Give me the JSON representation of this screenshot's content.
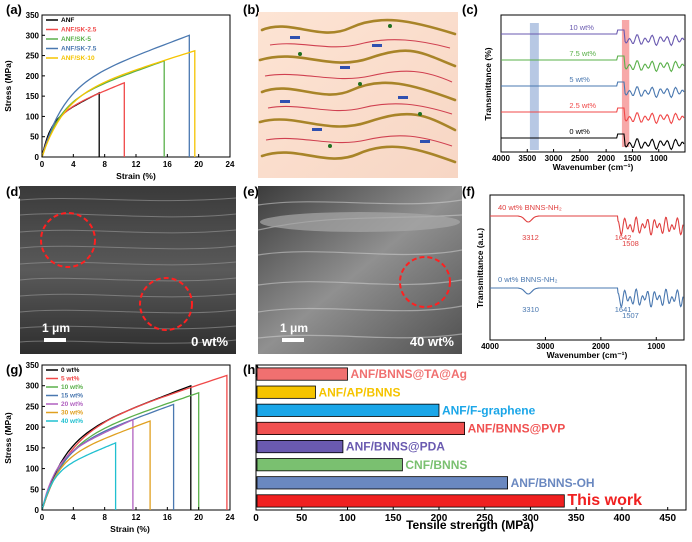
{
  "panels": {
    "a": {
      "label": "(a)"
    },
    "b": {
      "label": "(b)"
    },
    "c": {
      "label": "(c)"
    },
    "d": {
      "label": "(d)",
      "scale": "1 μm",
      "caption": "0 wt%"
    },
    "e": {
      "label": "(e)",
      "scale": "1 μm",
      "caption": "40 wt%"
    },
    "f": {
      "label": "(f)"
    },
    "g": {
      "label": "(g)"
    },
    "h": {
      "label": "(h)"
    }
  },
  "colors": {
    "black": "#000000",
    "red": "#f04848",
    "green": "#5ab04a",
    "blue": "#4a78b0",
    "yellow": "#f5c400",
    "purple": "#b060c0",
    "orange": "#e0a020",
    "cyan": "#20c0d0",
    "sky": "#1aa6e8",
    "darkred": "#e02020",
    "steel": "#6a88c0",
    "indigo": "#6a5ab0",
    "mint": "#7ac070",
    "salmon": "#f07070"
  },
  "chart_data": [
    {
      "panel": "a",
      "type": "line",
      "xlabel": "Strain (%)",
      "ylabel": "Stress (MPa)",
      "xlim": [
        0,
        24
      ],
      "ylim": [
        0,
        350
      ],
      "xticks": [
        0,
        4,
        8,
        12,
        16,
        20,
        24
      ],
      "yticks": [
        0,
        50,
        100,
        150,
        200,
        250,
        300,
        350
      ],
      "series": [
        {
          "name": "ANF",
          "color": "#000000",
          "break": 7.3,
          "peak": 158
        },
        {
          "name": "ANF/SK-2.5",
          "color": "#f04848",
          "break": 10.5,
          "peak": 183
        },
        {
          "name": "ANF/SK-5",
          "color": "#5ab04a",
          "break": 15.6,
          "peak": 237
        },
        {
          "name": "ANF/SK-7.5",
          "color": "#4a78b0",
          "break": 18.8,
          "peak": 300
        },
        {
          "name": "ANF/SK-10",
          "color": "#f5c400",
          "break": 19.5,
          "peak": 262
        }
      ]
    },
    {
      "panel": "c",
      "type": "line",
      "xlabel": "Wavenumber (cm⁻¹)",
      "ylabel": "Transmittance (%)",
      "xlim": [
        4000,
        500
      ],
      "xticks": [
        4000,
        3500,
        3000,
        2500,
        2000,
        1500,
        1000
      ],
      "series": [
        {
          "name": "0 wt%",
          "color": "#000000"
        },
        {
          "name": "2.5 wt%",
          "color": "#f04848"
        },
        {
          "name": "5 wt%",
          "color": "#4a78b0"
        },
        {
          "name": "7.5 wt%",
          "color": "#5ab04a"
        },
        {
          "name": "10 wt%",
          "color": "#6a5ab0"
        }
      ]
    },
    {
      "panel": "f",
      "type": "line",
      "xlabel": "Wavenumber (cm⁻¹)",
      "ylabel": "Transmittance (a.u.)",
      "xlim": [
        4000,
        500
      ],
      "xticks": [
        4000,
        3000,
        2000,
        1000
      ],
      "series": [
        {
          "name": "40 wt% BNNS-NH₂",
          "color": "#e04040",
          "peaks": [
            "3312",
            "1642",
            "1508"
          ]
        },
        {
          "name": "0 wt% BNNS-NH₂",
          "color": "#4a78b0",
          "peaks": [
            "3310",
            "1641",
            "1507"
          ]
        }
      ]
    },
    {
      "panel": "g",
      "type": "line",
      "xlabel": "Strain (%)",
      "ylabel": "Stress (MPa)",
      "xlim": [
        0,
        24
      ],
      "ylim": [
        0,
        350
      ],
      "xticks": [
        0,
        4,
        8,
        12,
        16,
        20,
        24
      ],
      "yticks": [
        0,
        50,
        100,
        150,
        200,
        250,
        300,
        350
      ],
      "series": [
        {
          "name": "0 wt%",
          "color": "#000000",
          "break": 19.0,
          "peak": 300
        },
        {
          "name": "5 wt%",
          "color": "#f04848",
          "break": 23.6,
          "peak": 325
        },
        {
          "name": "10 wt%",
          "color": "#5ab04a",
          "break": 20.0,
          "peak": 283
        },
        {
          "name": "15 wt%",
          "color": "#4a78b0",
          "break": 16.8,
          "peak": 255
        },
        {
          "name": "20 wt%",
          "color": "#b060c0",
          "break": 11.6,
          "peak": 218
        },
        {
          "name": "30 wt%",
          "color": "#e0a020",
          "break": 13.8,
          "peak": 215
        },
        {
          "name": "40 wt%",
          "color": "#20c0d0",
          "break": 9.4,
          "peak": 162
        }
      ]
    },
    {
      "panel": "h",
      "type": "bar",
      "orientation": "horizontal",
      "xlabel": "Tensile strength (MPa)",
      "xlim": [
        0,
        470
      ],
      "xticks": [
        0,
        50,
        100,
        150,
        200,
        250,
        300,
        350,
        400,
        450
      ],
      "categories": [
        "ANF/BNNS@TA@Ag",
        "ANF/AP/BNNS",
        "ANF/F-graphene",
        "ANF/BNNS@PVP",
        "ANF/BNNS@PDA",
        "CNF/BNNS",
        "ANF/BNNS-OH",
        "This work"
      ],
      "values": [
        100,
        65,
        200,
        228,
        95,
        160,
        275,
        337
      ],
      "colors": [
        "#f07070",
        "#f5c400",
        "#1aa6e8",
        "#f05050",
        "#6a5ab0",
        "#7ac070",
        "#6a88c0",
        "#f02020"
      ]
    }
  ]
}
